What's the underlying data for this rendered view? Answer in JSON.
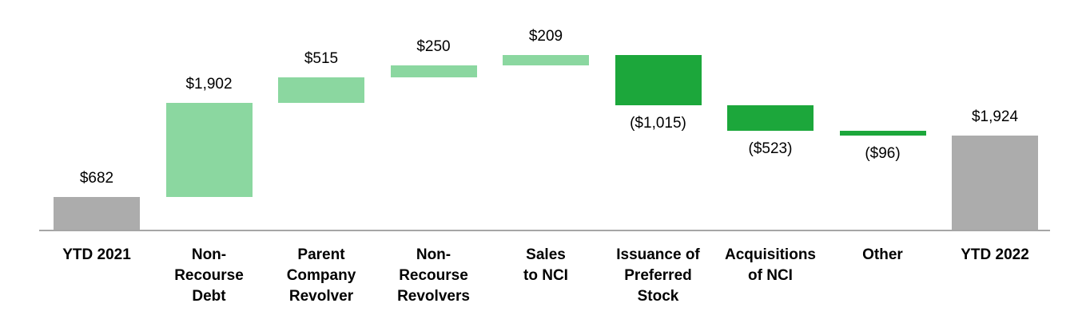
{
  "chart_data": {
    "type": "bar",
    "subtype": "waterfall",
    "title": "",
    "categories": [
      "YTD 2021",
      "Non-Recourse Debt",
      "Parent Company Revolver",
      "Non-Recourse Revolvers",
      "Sales to NCI",
      "Issuance of Preferred Stock",
      "Acquisitions of NCI",
      "Other",
      "YTD 2022"
    ],
    "steps": [
      {
        "label_lines": [
          "YTD 2021"
        ],
        "value": 682,
        "display": "$682",
        "kind": "total"
      },
      {
        "label_lines": [
          "Non-",
          "Recourse",
          "Debt"
        ],
        "value": 1902,
        "display": "$1,902",
        "kind": "increase"
      },
      {
        "label_lines": [
          "Parent",
          "Company",
          "Revolver"
        ],
        "value": 515,
        "display": "$515",
        "kind": "increase"
      },
      {
        "label_lines": [
          "Non-",
          "Recourse",
          "Revolvers"
        ],
        "value": 250,
        "display": "$250",
        "kind": "increase"
      },
      {
        "label_lines": [
          "Sales",
          "to NCI"
        ],
        "value": 209,
        "display": "$209",
        "kind": "increase"
      },
      {
        "label_lines": [
          "Issuance of",
          "Preferred",
          "Stock"
        ],
        "value": -1015,
        "display": "($1,015)",
        "kind": "decrease"
      },
      {
        "label_lines": [
          "Acquisitions",
          "of NCI"
        ],
        "value": -523,
        "display": "($523)",
        "kind": "decrease"
      },
      {
        "label_lines": [
          "Other"
        ],
        "value": -96,
        "display": "($96)",
        "kind": "decrease"
      },
      {
        "label_lines": [
          "YTD 2022"
        ],
        "value": 1924,
        "display": "$1,924",
        "kind": "total"
      }
    ],
    "colors": {
      "total": "#ACACAC",
      "increase": "#8BD7A0",
      "decrease": "#1CA73B",
      "axis_line": "#A6A6A6",
      "label_text": "#000000"
    },
    "layout": {
      "grid": false,
      "legend": false,
      "value_axis_visible": false,
      "ylim": [
        0,
        3558
      ],
      "baseline_value": 0
    }
  }
}
